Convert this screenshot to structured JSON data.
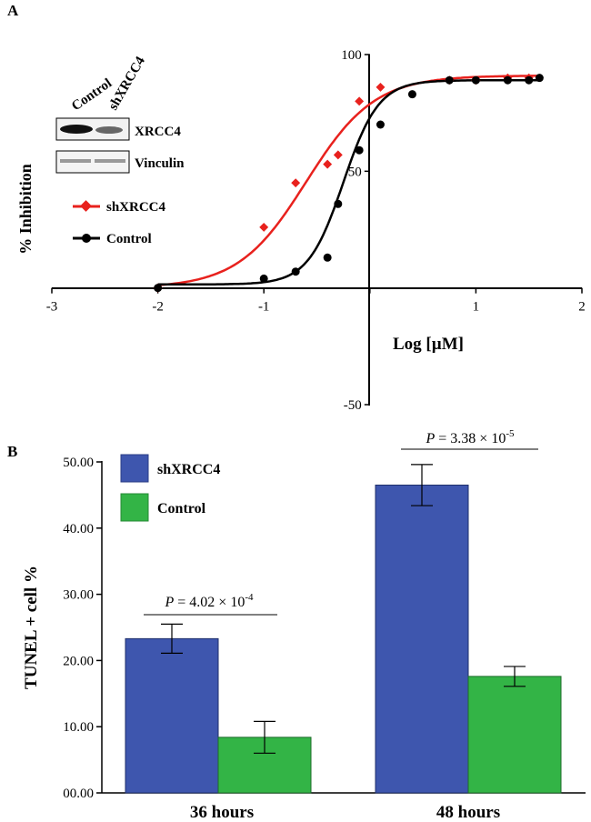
{
  "colors": {
    "red_series": "#e8211d",
    "black_series": "#000000",
    "blue_bar": "#3e56ae",
    "green_bar": "#33b446"
  },
  "chart_data": [
    {
      "type": "scatter",
      "panel_label": "A",
      "xlabel": "Log [µM]",
      "ylabel": "% Inhibition",
      "xlim": [
        -3,
        2
      ],
      "ylim": [
        -50,
        100
      ],
      "x_ticks": [
        -3,
        -2,
        -1,
        0,
        1,
        2
      ],
      "y_ticks": [
        -50,
        50,
        100
      ],
      "x_tick_labels": [
        "-3",
        "-2",
        "-1",
        "",
        "1",
        "2"
      ],
      "y_tick_labels": [
        "-50",
        "50",
        "100"
      ],
      "legend": {
        "entries": [
          "shXRCC4",
          "Control"
        ],
        "placement": "left"
      },
      "series": [
        {
          "name": "shXRCC4",
          "marker": "diamond",
          "points": [
            {
              "x": -2.0,
              "y": 0
            },
            {
              "x": -1.0,
              "y": 26
            },
            {
              "x": -0.7,
              "y": 45
            },
            {
              "x": -0.4,
              "y": 53
            },
            {
              "x": -0.3,
              "y": 57
            },
            {
              "x": -0.1,
              "y": 80
            },
            {
              "x": 0.1,
              "y": 86
            },
            {
              "x": 0.75,
              "y": 89
            },
            {
              "x": 1.0,
              "y": 89
            },
            {
              "x": 1.3,
              "y": 90
            },
            {
              "x": 1.5,
              "y": 90
            }
          ],
          "fit": {
            "bottom": 0,
            "top": 91,
            "log_ic50": -0.6,
            "hill": 1.35
          }
        },
        {
          "name": "Control",
          "marker": "circle",
          "points": [
            {
              "x": -2.0,
              "y": 0
            },
            {
              "x": -1.0,
              "y": 4
            },
            {
              "x": -0.7,
              "y": 7
            },
            {
              "x": -0.4,
              "y": 13
            },
            {
              "x": -0.3,
              "y": 36
            },
            {
              "x": -0.1,
              "y": 59
            },
            {
              "x": 0.1,
              "y": 70
            },
            {
              "x": 0.4,
              "y": 83
            },
            {
              "x": 0.75,
              "y": 89
            },
            {
              "x": 1.0,
              "y": 89
            },
            {
              "x": 1.3,
              "y": 89
            },
            {
              "x": 1.5,
              "y": 89
            },
            {
              "x": 1.6,
              "y": 90
            }
          ],
          "fit": {
            "bottom": 1.5,
            "top": 89,
            "log_ic50": -0.25,
            "hill": 2.6
          }
        }
      ],
      "western_blot": {
        "lane_labels": [
          "Control",
          "shXRCC4"
        ],
        "bands": [
          "XRCC4",
          "Vinculin"
        ],
        "relative_intensity": {
          "XRCC4": [
            1.0,
            0.35
          ],
          "Vinculin": [
            0.45,
            0.45
          ]
        }
      }
    },
    {
      "type": "bar",
      "panel_label": "B",
      "ylabel": "TUNEL + cell %",
      "xlabel": "",
      "categories": [
        "36 hours",
        "48 hours"
      ],
      "ylim": [
        0,
        50
      ],
      "y_ticks": [
        0,
        10,
        20,
        30,
        40,
        50
      ],
      "y_tick_labels": [
        "00.00",
        "10.00",
        "20.00",
        "30.00",
        "40.00",
        "50.00"
      ],
      "series": [
        {
          "name": "shXRCC4",
          "values": [
            23.3,
            46.5
          ],
          "errors": [
            2.2,
            3.1
          ]
        },
        {
          "name": "Control",
          "values": [
            8.4,
            17.6
          ],
          "errors": [
            2.4,
            1.5
          ]
        }
      ],
      "legend": {
        "entries": [
          "shXRCC4",
          "Control"
        ],
        "placement": "top-left"
      },
      "annotations": [
        {
          "category": "36 hours",
          "p_label": "P",
          "p_text": " = 4.02 × 10",
          "p_exp": "-4"
        },
        {
          "category": "48 hours",
          "p_label": "P",
          "p_text": " = 3.38 × 10",
          "p_exp": "-5"
        }
      ]
    }
  ]
}
